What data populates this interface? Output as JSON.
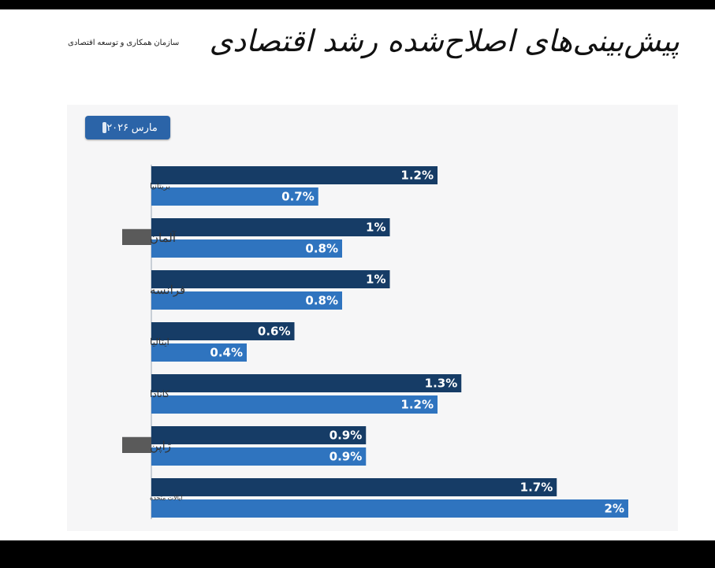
{
  "title": "پیش‌بینی‌های اصلاح‌شده رشد اقتصادی",
  "source": "سازمان همکاری و توسعه اقتصادی",
  "date_badge": "مارس ۲۰۲۶",
  "colors": {
    "series_a": "#163c66",
    "series_b": "#2f74bf",
    "badge": "#2b64a8"
  },
  "chart_data": {
    "type": "bar",
    "orientation": "horizontal",
    "categories": [
      "بریتانیا",
      "آلمان",
      "فرانسه",
      "ایتالیا",
      "کانادا",
      "ژاپن",
      "ایالات متحده"
    ],
    "series": [
      {
        "values": [
          1.2,
          1,
          1,
          0.6,
          1.3,
          0.9,
          1.7
        ],
        "labels": [
          "1.2%",
          "1%",
          "1%",
          "0.6%",
          "1.3%",
          "0.9%",
          "1.7%"
        ]
      },
      {
        "values": [
          0.7,
          0.8,
          0.8,
          0.4,
          1.2,
          0.9,
          2
        ],
        "labels": [
          "0.7%",
          "0.8%",
          "0.8%",
          "0.4%",
          "1.2%",
          "0.9%",
          "2%"
        ]
      }
    ],
    "xlim": [
      0,
      2
    ],
    "grid": false,
    "legend": "none"
  }
}
